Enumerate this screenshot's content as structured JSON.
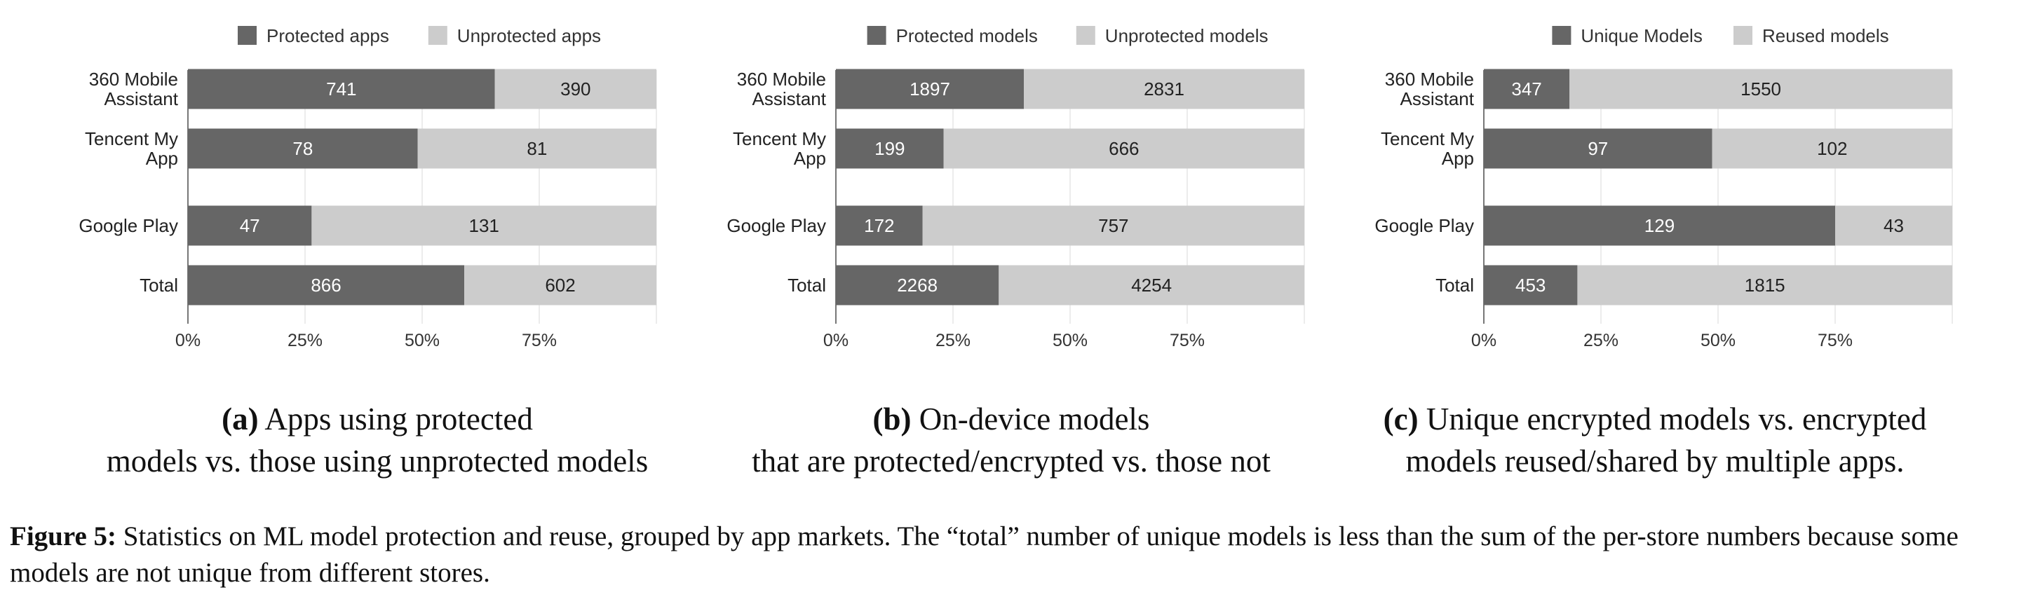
{
  "chart_data": [
    {
      "type": "bar",
      "stacked": "percent",
      "orientation": "horizontal",
      "categories": [
        [
          "360 Mobile",
          "Assistant"
        ],
        [
          "Tencent My",
          "App"
        ],
        [
          "Google Play"
        ],
        [
          "Total"
        ]
      ],
      "series": [
        {
          "name": "Protected apps",
          "values": [
            741,
            78,
            47,
            866
          ]
        },
        {
          "name": "Unprotected apps",
          "values": [
            390,
            81,
            131,
            602
          ]
        }
      ],
      "xticks": [
        "0%",
        "25%",
        "50%",
        "75%"
      ],
      "xlim": [
        0,
        100
      ],
      "legend": "top",
      "colors": [
        "#666666",
        "#cccccc"
      ],
      "caption": {
        "tag": "(a)",
        "line1": "Apps using protected",
        "line2": "models vs. those using unprotected models"
      }
    },
    {
      "type": "bar",
      "stacked": "percent",
      "orientation": "horizontal",
      "categories": [
        [
          "360 Mobile",
          "Assistant"
        ],
        [
          "Tencent My",
          "App"
        ],
        [
          "Google Play"
        ],
        [
          "Total"
        ]
      ],
      "series": [
        {
          "name": "Protected models",
          "values": [
            1897,
            199,
            172,
            2268
          ]
        },
        {
          "name": "Unprotected models",
          "values": [
            2831,
            666,
            757,
            4254
          ]
        }
      ],
      "xticks": [
        "0%",
        "25%",
        "50%",
        "75%"
      ],
      "xlim": [
        0,
        100
      ],
      "legend": "top",
      "colors": [
        "#666666",
        "#cccccc"
      ],
      "caption": {
        "tag": "(b)",
        "line1": "On-device models",
        "line2": "that are protected/encrypted vs. those not"
      }
    },
    {
      "type": "bar",
      "stacked": "percent",
      "orientation": "horizontal",
      "categories": [
        [
          "360 Mobile",
          "Assistant"
        ],
        [
          "Tencent My",
          "App"
        ],
        [
          "Google Play"
        ],
        [
          "Total"
        ]
      ],
      "series": [
        {
          "name": "Unique Models",
          "values": [
            347,
            97,
            129,
            453
          ]
        },
        {
          "name": "Reused models",
          "values": [
            1550,
            102,
            43,
            1815
          ]
        }
      ],
      "xticks": [
        "0%",
        "25%",
        "50%",
        "75%"
      ],
      "xlim": [
        0,
        100
      ],
      "legend": "top",
      "colors": [
        "#666666",
        "#cccccc"
      ],
      "caption": {
        "tag": "(c)",
        "line1": "Unique encrypted models vs. encrypted",
        "line2": "models reused/shared by multiple apps."
      }
    }
  ],
  "figure_caption": {
    "label": "Figure 5:",
    "text": "Statistics on ML model protection and reuse, grouped by app markets. The “total” number of unique models is less than the sum of the per-store numbers because some models are not unique from different stores."
  },
  "colors": {
    "dark_segment_text": "#ffffff",
    "light_segment_text": "#222222",
    "axis": "#999999"
  }
}
